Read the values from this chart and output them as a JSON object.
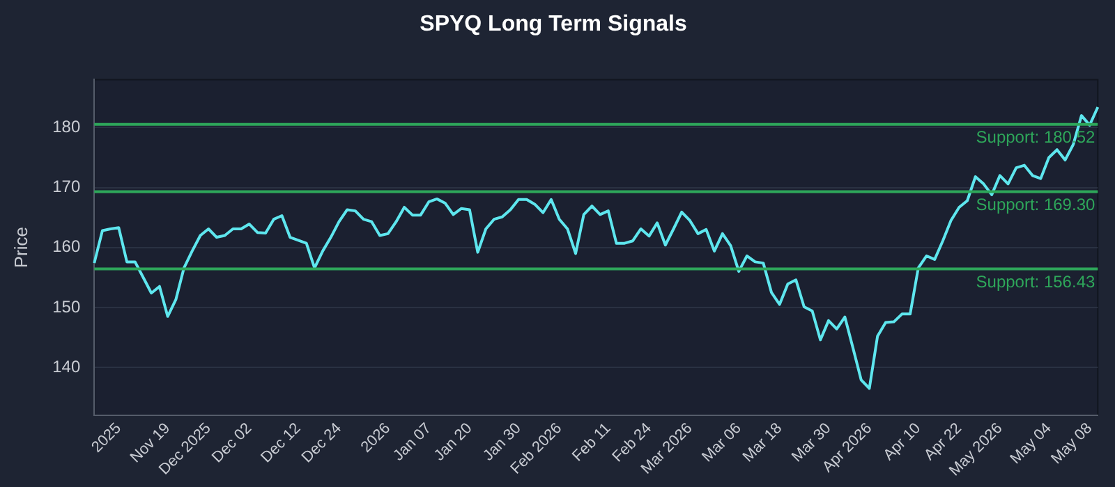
{
  "chart_data": {
    "type": "line",
    "title": "SPYQ Long Term Signals",
    "ylabel": "Price",
    "categories": [
      null,
      null,
      null,
      "2025",
      null,
      null,
      null,
      null,
      null,
      "Nov 19",
      null,
      null,
      null,
      null,
      "Dec 2025",
      null,
      null,
      null,
      null,
      "Dec 02",
      null,
      null,
      null,
      null,
      null,
      "Dec 12",
      null,
      null,
      null,
      null,
      "Dec 24",
      null,
      null,
      null,
      null,
      null,
      "2026",
      null,
      null,
      null,
      null,
      "Jan 07",
      null,
      null,
      null,
      null,
      "Jan 20",
      null,
      null,
      null,
      null,
      null,
      "Jan 30",
      null,
      null,
      null,
      null,
      "Feb 2026",
      null,
      null,
      null,
      null,
      null,
      "Feb 11",
      null,
      null,
      null,
      null,
      "Feb 24",
      null,
      null,
      null,
      null,
      "Mar 2026",
      null,
      null,
      null,
      null,
      null,
      "Mar 06",
      null,
      null,
      null,
      null,
      "Mar 18",
      null,
      null,
      null,
      null,
      null,
      "Mar 30",
      null,
      null,
      null,
      null,
      "Apr 2026",
      null,
      null,
      null,
      null,
      null,
      "Apr 10",
      null,
      null,
      null,
      null,
      "Apr 22",
      null,
      null,
      null,
      null,
      "May 2026",
      null,
      null,
      null,
      null,
      null,
      "May 04",
      null,
      null,
      null,
      null,
      "May 08",
      null
    ],
    "series": [
      {
        "color": "#5ee6ee",
        "values": [
          157.4,
          162.8,
          163.1,
          163.3,
          157.6,
          157.6,
          155.0,
          152.4,
          153.5,
          148.5,
          151.3,
          156.6,
          159.4,
          162.0,
          163.1,
          161.7,
          162.0,
          163.1,
          163.1,
          163.9,
          162.5,
          162.4,
          164.7,
          165.3,
          161.7,
          161.2,
          160.7,
          156.6,
          159.4,
          161.7,
          164.3,
          166.3,
          166.1,
          164.7,
          164.3,
          162.0,
          162.3,
          164.3,
          166.7,
          165.4,
          165.4,
          167.6,
          168.1,
          167.4,
          165.5,
          166.5,
          166.3,
          159.2,
          163.1,
          164.7,
          165.1,
          166.3,
          168.0,
          168.0,
          167.2,
          165.8,
          168.0,
          164.7,
          163.1,
          159.0,
          165.5,
          166.9,
          165.5,
          166.1,
          160.7,
          160.7,
          161.1,
          163.1,
          161.9,
          164.1,
          160.4,
          163.1,
          165.9,
          164.5,
          162.3,
          163.0,
          159.4,
          162.3,
          160.3,
          156.0,
          158.6,
          157.6,
          157.4,
          152.5,
          150.5,
          153.9,
          154.6,
          150.1,
          149.4,
          144.6,
          147.8,
          146.4,
          148.4,
          143.2,
          137.9,
          136.5,
          145.2,
          147.5,
          147.6,
          148.9,
          148.9,
          156.6,
          158.6,
          158.0,
          161.1,
          164.5,
          166.7,
          167.8,
          171.8,
          170.6,
          168.8,
          172.0,
          170.6,
          173.3,
          173.7,
          172.0,
          171.5,
          175.0,
          176.3,
          174.6,
          177.2,
          182.0,
          180.4,
          183.4
        ]
      }
    ],
    "ylim": [
      132,
      188
    ],
    "yticks": [
      140,
      150,
      160,
      170,
      180
    ],
    "grid": "y",
    "legend": false,
    "marker": "none",
    "line_style": "solid",
    "ref_lines": [
      {
        "axis": "y",
        "value": 180.52,
        "label": "Support: 180.52",
        "color": "#2ea65a"
      },
      {
        "axis": "y",
        "value": 169.3,
        "label": "Support: 169.30",
        "color": "#2ea65a"
      },
      {
        "axis": "y",
        "value": 156.43,
        "label": "Support: 156.43",
        "color": "#2ea65a"
      }
    ]
  }
}
